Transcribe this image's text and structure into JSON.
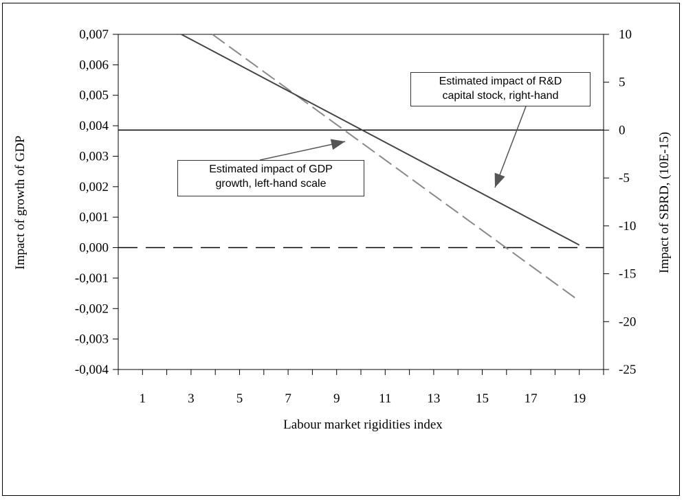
{
  "chart_data": {
    "type": "line",
    "xlabel": "Labour market rigidities index",
    "ylabel_left": "Impact of growth of GDP",
    "ylabel_right": "Impact of SBRD, (10E-15)",
    "x_ticks": [
      "1",
      "3",
      "5",
      "7",
      "9",
      "11",
      "13",
      "15",
      "17",
      "19"
    ],
    "y_left_ticks": [
      "0,007",
      "0,006",
      "0,005",
      "0,004",
      "0,003",
      "0,002",
      "0,001",
      "0,000",
      "-0,001",
      "-0,002",
      "-0,003",
      "-0,004"
    ],
    "y_right_ticks": [
      "10",
      "5",
      "0",
      "-5",
      "-10",
      "-15",
      "-20",
      "-25"
    ],
    "xlim": [
      0,
      20
    ],
    "ylim_left": [
      -0.004,
      0.007
    ],
    "ylim_right": [
      -25,
      10
    ],
    "series": [
      {
        "axis": "left",
        "style": "dashed",
        "color": "#888888",
        "x": [
          3.88,
          19
        ],
        "y": [
          0.007,
          -0.00175
        ]
      },
      {
        "axis": "right",
        "style": "solid",
        "color": "#444444",
        "x": [
          2.6,
          19
        ],
        "y": [
          10,
          -12
        ]
      }
    ],
    "reference_lines": [
      {
        "axis": "right",
        "y": 0,
        "style": "solid",
        "color": "#000000"
      },
      {
        "axis": "left",
        "y": 0,
        "style": "dashed",
        "color": "#000000"
      }
    ],
    "annotations": [
      {
        "lines": [
          "Estimated impact of R&D",
          "capital stock, right-hand"
        ]
      },
      {
        "lines": [
          "Estimated impact of GDP",
          "growth, left-hand scale"
        ]
      }
    ]
  }
}
